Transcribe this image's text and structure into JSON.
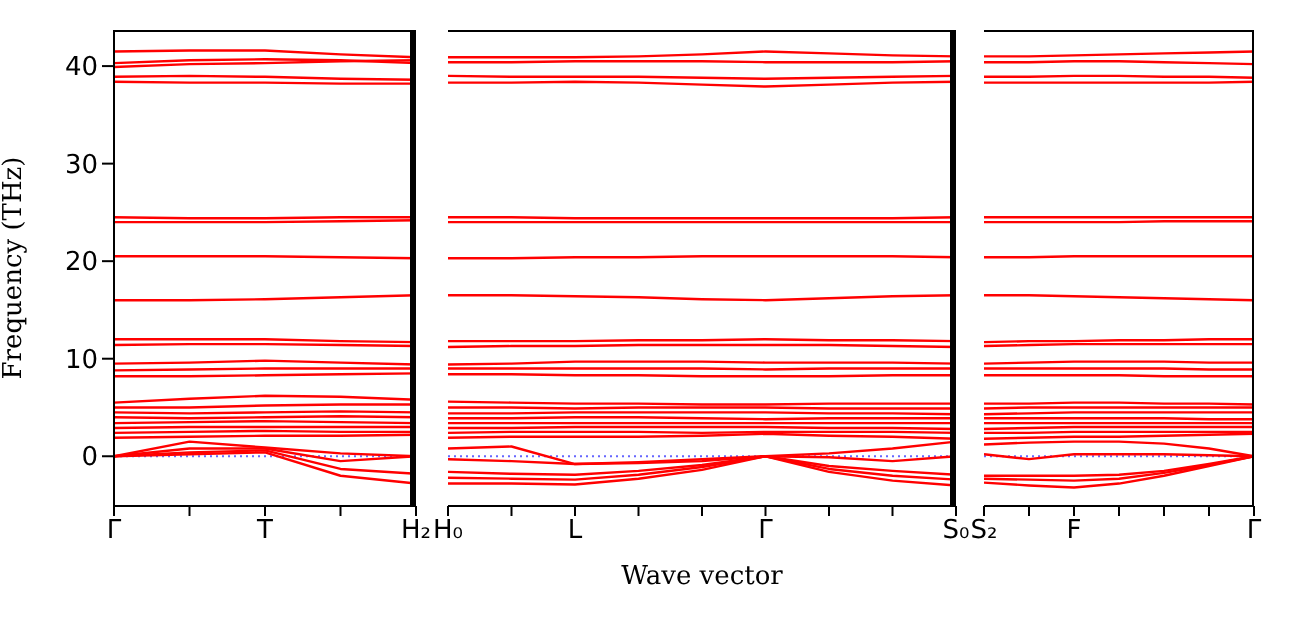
{
  "chart_data": [
    {
      "type": "line",
      "ylabel": "Frequency (THz)",
      "categories": [
        "Γ",
        null,
        "T",
        null,
        "H₂"
      ],
      "ylim": [
        -5.1,
        43.7
      ],
      "yticks": [
        0,
        10,
        20,
        30,
        40
      ],
      "grid": false,
      "marker": "none",
      "line_style": "solid",
      "ref_lines": [
        {
          "axis": "y",
          "value": 0,
          "color": "#6666ff",
          "line_style": "dotted"
        }
      ],
      "series": [
        {
          "color": "#ff0000",
          "values": [
            41.5,
            41.6,
            41.6,
            41.2,
            40.9
          ]
        },
        {
          "color": "#ff0000",
          "values": [
            40.3,
            40.6,
            40.7,
            40.6,
            40.3
          ]
        },
        {
          "color": "#ff0000",
          "values": [
            39.9,
            40.2,
            40.3,
            40.5,
            40.6
          ]
        },
        {
          "color": "#ff0000",
          "values": [
            38.9,
            39.0,
            38.9,
            38.7,
            38.6
          ]
        },
        {
          "color": "#ff0000",
          "values": [
            38.4,
            38.3,
            38.3,
            38.2,
            38.2
          ]
        },
        {
          "color": "#ff0000",
          "values": [
            24.5,
            24.4,
            24.4,
            24.5,
            24.5
          ]
        },
        {
          "color": "#ff0000",
          "values": [
            24.0,
            24.0,
            24.0,
            24.1,
            24.2
          ]
        },
        {
          "color": "#ff0000",
          "values": [
            20.5,
            20.5,
            20.5,
            20.4,
            20.3
          ]
        },
        {
          "color": "#ff0000",
          "values": [
            16.0,
            16.0,
            16.1,
            16.3,
            16.5
          ]
        },
        {
          "color": "#ff0000",
          "values": [
            12.0,
            12.0,
            12.0,
            11.8,
            11.7
          ]
        },
        {
          "color": "#ff0000",
          "values": [
            11.4,
            11.5,
            11.5,
            11.4,
            11.3
          ]
        },
        {
          "color": "#ff0000",
          "values": [
            9.5,
            9.6,
            9.8,
            9.6,
            9.4
          ]
        },
        {
          "color": "#ff0000",
          "values": [
            8.8,
            8.9,
            9.0,
            9.0,
            9.0
          ]
        },
        {
          "color": "#ff0000",
          "values": [
            8.2,
            8.2,
            8.3,
            8.4,
            8.5
          ]
        },
        {
          "color": "#ff0000",
          "values": [
            5.5,
            5.9,
            6.2,
            6.1,
            5.8
          ]
        },
        {
          "color": "#ff0000",
          "values": [
            5.0,
            5.0,
            5.2,
            5.3,
            5.3
          ]
        },
        {
          "color": "#ff0000",
          "values": [
            4.5,
            4.4,
            4.5,
            4.6,
            4.5
          ]
        },
        {
          "color": "#ff0000",
          "values": [
            4.0,
            3.9,
            4.0,
            4.1,
            4.0
          ]
        },
        {
          "color": "#ff0000",
          "values": [
            3.4,
            3.5,
            3.6,
            3.5,
            3.4
          ]
        },
        {
          "color": "#ff0000",
          "values": [
            2.9,
            3.0,
            3.0,
            3.0,
            3.0
          ]
        },
        {
          "color": "#ff0000",
          "values": [
            2.4,
            2.5,
            2.6,
            2.5,
            2.5
          ]
        },
        {
          "color": "#ff0000",
          "values": [
            1.9,
            2.0,
            2.1,
            2.1,
            2.2
          ]
        },
        {
          "color": "#ff0000",
          "values": [
            0,
            1.5,
            0.9,
            0.3,
            0
          ]
        },
        {
          "color": "#ff0000",
          "values": [
            0,
            0.8,
            0.8,
            -0.5,
            0
          ]
        },
        {
          "color": "#ff0000",
          "values": [
            0,
            0.4,
            0.6,
            -1.3,
            -1.8
          ]
        },
        {
          "color": "#ff0000",
          "values": [
            0,
            0.2,
            0.4,
            -2.0,
            -2.8
          ]
        }
      ]
    },
    {
      "type": "line",
      "xlabel": "Wave vector",
      "categories": [
        "H₀",
        null,
        "L",
        null,
        null,
        "Γ",
        null,
        null,
        "S₀"
      ],
      "ylim": [
        -5.1,
        43.7
      ],
      "yticks": [
        0,
        10,
        20,
        30,
        40
      ],
      "tick_labels": "x",
      "grid": false,
      "marker": "none",
      "line_style": "solid",
      "ref_lines": [
        {
          "axis": "y",
          "value": 0,
          "color": "#6666ff",
          "line_style": "dotted"
        }
      ],
      "series": [
        {
          "color": "#ff0000",
          "values": [
            40.9,
            40.9,
            40.9,
            41.0,
            41.2,
            41.5,
            41.3,
            41.1,
            41.0
          ]
        },
        {
          "color": "#ff0000",
          "values": [
            40.4,
            40.4,
            40.5,
            40.5,
            40.5,
            40.4,
            40.4,
            40.4,
            40.5
          ]
        },
        {
          "color": "#ff0000",
          "values": [
            39.0,
            38.9,
            38.9,
            38.9,
            38.8,
            38.7,
            38.8,
            38.9,
            39.0
          ]
        },
        {
          "color": "#ff0000",
          "values": [
            38.3,
            38.3,
            38.4,
            38.3,
            38.1,
            37.9,
            38.1,
            38.3,
            38.4
          ]
        },
        {
          "color": "#ff0000",
          "values": [
            24.5,
            24.5,
            24.4,
            24.4,
            24.4,
            24.4,
            24.4,
            24.4,
            24.5
          ]
        },
        {
          "color": "#ff0000",
          "values": [
            24.0,
            24.0,
            24.0,
            24.0,
            24.0,
            24.0,
            24.0,
            24.0,
            24.0
          ]
        },
        {
          "color": "#ff0000",
          "values": [
            20.3,
            20.3,
            20.4,
            20.4,
            20.5,
            20.5,
            20.5,
            20.5,
            20.4
          ]
        },
        {
          "color": "#ff0000",
          "values": [
            16.5,
            16.5,
            16.4,
            16.3,
            16.1,
            16.0,
            16.2,
            16.4,
            16.5
          ]
        },
        {
          "color": "#ff0000",
          "values": [
            11.8,
            11.8,
            11.8,
            11.9,
            11.9,
            12.0,
            11.9,
            11.9,
            11.8
          ]
        },
        {
          "color": "#ff0000",
          "values": [
            11.2,
            11.3,
            11.3,
            11.4,
            11.4,
            11.4,
            11.4,
            11.3,
            11.2
          ]
        },
        {
          "color": "#ff0000",
          "values": [
            9.4,
            9.5,
            9.7,
            9.7,
            9.7,
            9.6,
            9.6,
            9.6,
            9.5
          ]
        },
        {
          "color": "#ff0000",
          "values": [
            9.0,
            9.0,
            9.0,
            9.0,
            9.0,
            8.9,
            9.0,
            9.0,
            9.0
          ]
        },
        {
          "color": "#ff0000",
          "values": [
            8.4,
            8.4,
            8.3,
            8.3,
            8.2,
            8.2,
            8.2,
            8.3,
            8.3
          ]
        },
        {
          "color": "#ff0000",
          "values": [
            5.6,
            5.5,
            5.4,
            5.4,
            5.3,
            5.3,
            5.4,
            5.4,
            5.4
          ]
        },
        {
          "color": "#ff0000",
          "values": [
            5.0,
            5.0,
            4.9,
            5.0,
            5.0,
            5.0,
            4.9,
            4.9,
            4.9
          ]
        },
        {
          "color": "#ff0000",
          "values": [
            4.4,
            4.4,
            4.5,
            4.5,
            4.5,
            4.5,
            4.4,
            4.4,
            4.3
          ]
        },
        {
          "color": "#ff0000",
          "values": [
            3.9,
            3.9,
            4.0,
            4.0,
            3.9,
            3.8,
            3.9,
            3.9,
            3.9
          ]
        },
        {
          "color": "#ff0000",
          "values": [
            3.4,
            3.4,
            3.4,
            3.4,
            3.4,
            3.4,
            3.4,
            3.4,
            3.4
          ]
        },
        {
          "color": "#ff0000",
          "values": [
            2.9,
            2.9,
            3.0,
            3.0,
            3.0,
            3.0,
            2.9,
            2.9,
            2.8
          ]
        },
        {
          "color": "#ff0000",
          "values": [
            2.4,
            2.5,
            2.5,
            2.5,
            2.4,
            2.5,
            2.5,
            2.5,
            2.4
          ]
        },
        {
          "color": "#ff0000",
          "values": [
            1.9,
            2.0,
            2.0,
            2.0,
            2.1,
            2.3,
            2.1,
            2.0,
            1.8
          ]
        },
        {
          "color": "#ff0000",
          "values": [
            0.8,
            1.0,
            -0.8,
            -0.7,
            -0.5,
            0,
            0.3,
            0.8,
            1.5
          ]
        },
        {
          "color": "#ff0000",
          "values": [
            -0.3,
            -0.5,
            -0.8,
            -0.6,
            -0.3,
            0,
            -0.1,
            -0.5,
            0
          ]
        },
        {
          "color": "#ff0000",
          "values": [
            -1.6,
            -1.8,
            -1.9,
            -1.5,
            -0.9,
            0,
            -1.0,
            -1.5,
            -1.9
          ]
        },
        {
          "color": "#ff0000",
          "values": [
            -2.2,
            -2.3,
            -2.4,
            -1.9,
            -1.1,
            0,
            -1.3,
            -2.0,
            -2.4
          ]
        },
        {
          "color": "#ff0000",
          "values": [
            -2.8,
            -2.8,
            -2.9,
            -2.3,
            -1.4,
            0,
            -1.6,
            -2.5,
            -3.0
          ]
        }
      ]
    },
    {
      "type": "line",
      "categories": [
        "S₂",
        null,
        "F",
        null,
        null,
        null,
        "Γ"
      ],
      "ylim": [
        -5.1,
        43.7
      ],
      "yticks": [
        0,
        10,
        20,
        30,
        40
      ],
      "tick_labels": "x",
      "grid": false,
      "marker": "none",
      "line_style": "solid",
      "ref_lines": [
        {
          "axis": "y",
          "value": 0,
          "color": "#6666ff",
          "line_style": "dotted"
        }
      ],
      "series": [
        {
          "color": "#ff0000",
          "values": [
            41.0,
            41.0,
            41.1,
            41.2,
            41.3,
            41.4,
            41.5
          ]
        },
        {
          "color": "#ff0000",
          "values": [
            40.4,
            40.4,
            40.5,
            40.5,
            40.4,
            40.3,
            40.2
          ]
        },
        {
          "color": "#ff0000",
          "values": [
            38.9,
            38.9,
            39.0,
            39.0,
            38.9,
            38.9,
            38.8
          ]
        },
        {
          "color": "#ff0000",
          "values": [
            38.3,
            38.3,
            38.3,
            38.3,
            38.3,
            38.3,
            38.4
          ]
        },
        {
          "color": "#ff0000",
          "values": [
            24.5,
            24.5,
            24.5,
            24.5,
            24.5,
            24.5,
            24.5
          ]
        },
        {
          "color": "#ff0000",
          "values": [
            24.0,
            24.0,
            24.0,
            24.0,
            24.1,
            24.1,
            24.1
          ]
        },
        {
          "color": "#ff0000",
          "values": [
            20.4,
            20.4,
            20.5,
            20.5,
            20.5,
            20.5,
            20.5
          ]
        },
        {
          "color": "#ff0000",
          "values": [
            16.5,
            16.5,
            16.4,
            16.3,
            16.2,
            16.1,
            16.0
          ]
        },
        {
          "color": "#ff0000",
          "values": [
            11.7,
            11.8,
            11.8,
            11.9,
            11.9,
            12.0,
            12.0
          ]
        },
        {
          "color": "#ff0000",
          "values": [
            11.3,
            11.4,
            11.5,
            11.5,
            11.5,
            11.5,
            11.5
          ]
        },
        {
          "color": "#ff0000",
          "values": [
            9.5,
            9.6,
            9.7,
            9.7,
            9.7,
            9.6,
            9.6
          ]
        },
        {
          "color": "#ff0000",
          "values": [
            9.0,
            9.0,
            9.0,
            9.0,
            9.0,
            8.9,
            8.9
          ]
        },
        {
          "color": "#ff0000",
          "values": [
            8.3,
            8.3,
            8.3,
            8.3,
            8.2,
            8.2,
            8.2
          ]
        },
        {
          "color": "#ff0000",
          "values": [
            5.4,
            5.4,
            5.5,
            5.5,
            5.4,
            5.4,
            5.3
          ]
        },
        {
          "color": "#ff0000",
          "values": [
            4.9,
            5.0,
            5.0,
            5.0,
            5.0,
            5.0,
            5.0
          ]
        },
        {
          "color": "#ff0000",
          "values": [
            4.3,
            4.4,
            4.5,
            4.5,
            4.5,
            4.5,
            4.5
          ]
        },
        {
          "color": "#ff0000",
          "values": [
            3.9,
            3.9,
            3.9,
            3.9,
            3.9,
            3.8,
            3.8
          ]
        },
        {
          "color": "#ff0000",
          "values": [
            3.4,
            3.4,
            3.4,
            3.4,
            3.4,
            3.4,
            3.4
          ]
        },
        {
          "color": "#ff0000",
          "values": [
            2.8,
            2.9,
            3.0,
            3.0,
            3.0,
            3.0,
            3.0
          ]
        },
        {
          "color": "#ff0000",
          "values": [
            2.4,
            2.4,
            2.5,
            2.5,
            2.5,
            2.5,
            2.5
          ]
        },
        {
          "color": "#ff0000",
          "values": [
            1.8,
            1.9,
            2.0,
            2.0,
            2.1,
            2.2,
            2.3
          ]
        },
        {
          "color": "#ff0000",
          "values": [
            1.2,
            1.4,
            1.5,
            1.5,
            1.3,
            0.8,
            0
          ]
        },
        {
          "color": "#ff0000",
          "values": [
            0.2,
            -0.3,
            0.2,
            0.2,
            0.2,
            0.1,
            0
          ]
        },
        {
          "color": "#ff0000",
          "values": [
            -2.0,
            -2.0,
            -2.0,
            -1.9,
            -1.5,
            -0.8,
            0
          ]
        },
        {
          "color": "#ff0000",
          "values": [
            -2.3,
            -2.4,
            -2.5,
            -2.3,
            -1.7,
            -0.9,
            0
          ]
        },
        {
          "color": "#ff0000",
          "values": [
            -2.7,
            -3.0,
            -3.2,
            -2.8,
            -2.0,
            -1.0,
            0
          ]
        }
      ]
    }
  ]
}
